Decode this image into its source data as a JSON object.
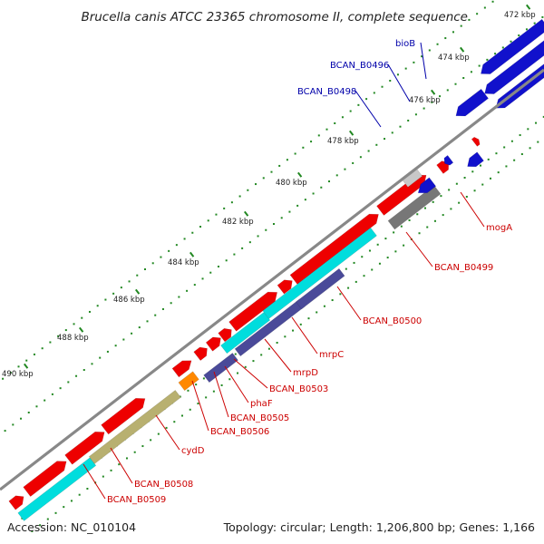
{
  "title": "Brucella canis ATCC 23365 chromosome II, complete sequence",
  "footer": {
    "accession": "Accession: NC_010104",
    "summary": "Topology: circular; Length: 1,206,800 bp; Genes: 1,166"
  },
  "colors": {
    "forward_cds": "#ee0000",
    "reverse_cds": "#1111cc",
    "cyan_feature": "#00dddd",
    "navy_feature": "#4a4a99",
    "olive_feature": "#b8b070",
    "orange_feature": "#ff8800",
    "gray_feature": "#777777",
    "light_gray_feature": "#c8c8c8",
    "backbone": "#888888",
    "tick": "#228822",
    "label_red": "#cc0000",
    "label_blue": "#0000aa"
  },
  "ticks": [
    "472 kbp",
    "474 kbp",
    "476 kbp",
    "478 kbp",
    "480 kbp",
    "482 kbp",
    "484 kbp",
    "486 kbp",
    "488 kbp",
    "490 kbp"
  ],
  "gene_labels": [
    {
      "text": "bioB",
      "color": "blue"
    },
    {
      "text": "BCAN_B0496",
      "color": "blue"
    },
    {
      "text": "BCAN_B0498",
      "color": "blue"
    },
    {
      "text": "mogA",
      "color": "red"
    },
    {
      "text": "BCAN_B0499",
      "color": "red"
    },
    {
      "text": "BCAN_B0500",
      "color": "red"
    },
    {
      "text": "mrpC",
      "color": "red"
    },
    {
      "text": "mrpD",
      "color": "red"
    },
    {
      "text": "BCAN_B0503",
      "color": "red"
    },
    {
      "text": "phaF",
      "color": "red"
    },
    {
      "text": "BCAN_B0505",
      "color": "red"
    },
    {
      "text": "BCAN_B0506",
      "color": "red"
    },
    {
      "text": "cydD",
      "color": "red"
    },
    {
      "text": "BCAN_B0508",
      "color": "red"
    },
    {
      "text": "BCAN_B0509",
      "color": "red"
    }
  ]
}
